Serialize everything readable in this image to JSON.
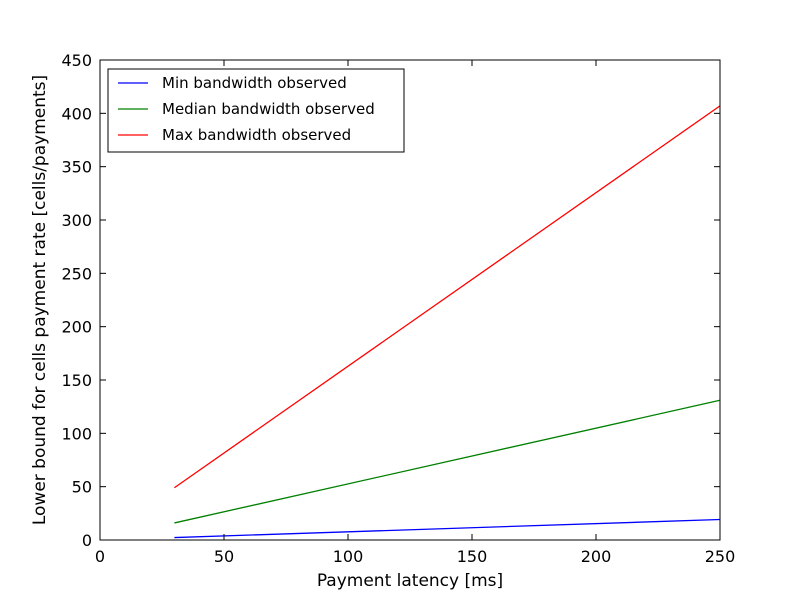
{
  "chart_data": {
    "type": "line",
    "title": "",
    "xlabel": "Payment latency [ms]",
    "ylabel": "Lower bound for cells payment rate [cells/payments]",
    "xlim": [
      0,
      250
    ],
    "ylim": [
      0,
      450
    ],
    "xticks": [
      0,
      50,
      100,
      150,
      200,
      250
    ],
    "yticks": [
      0,
      50,
      100,
      150,
      200,
      250,
      300,
      350,
      400,
      450
    ],
    "grid": false,
    "legend_position": "top-left",
    "series": [
      {
        "name": "Min bandwidth observed",
        "color": "#0000ff",
        "x": [
          30,
          250
        ],
        "y": [
          2.3,
          19.2
        ]
      },
      {
        "name": "Median bandwidth observed",
        "color": "#008000",
        "x": [
          30,
          250
        ],
        "y": [
          16,
          131
        ]
      },
      {
        "name": "Max bandwidth observed",
        "color": "#ff0000",
        "x": [
          30,
          250
        ],
        "y": [
          49,
          407
        ]
      }
    ]
  }
}
